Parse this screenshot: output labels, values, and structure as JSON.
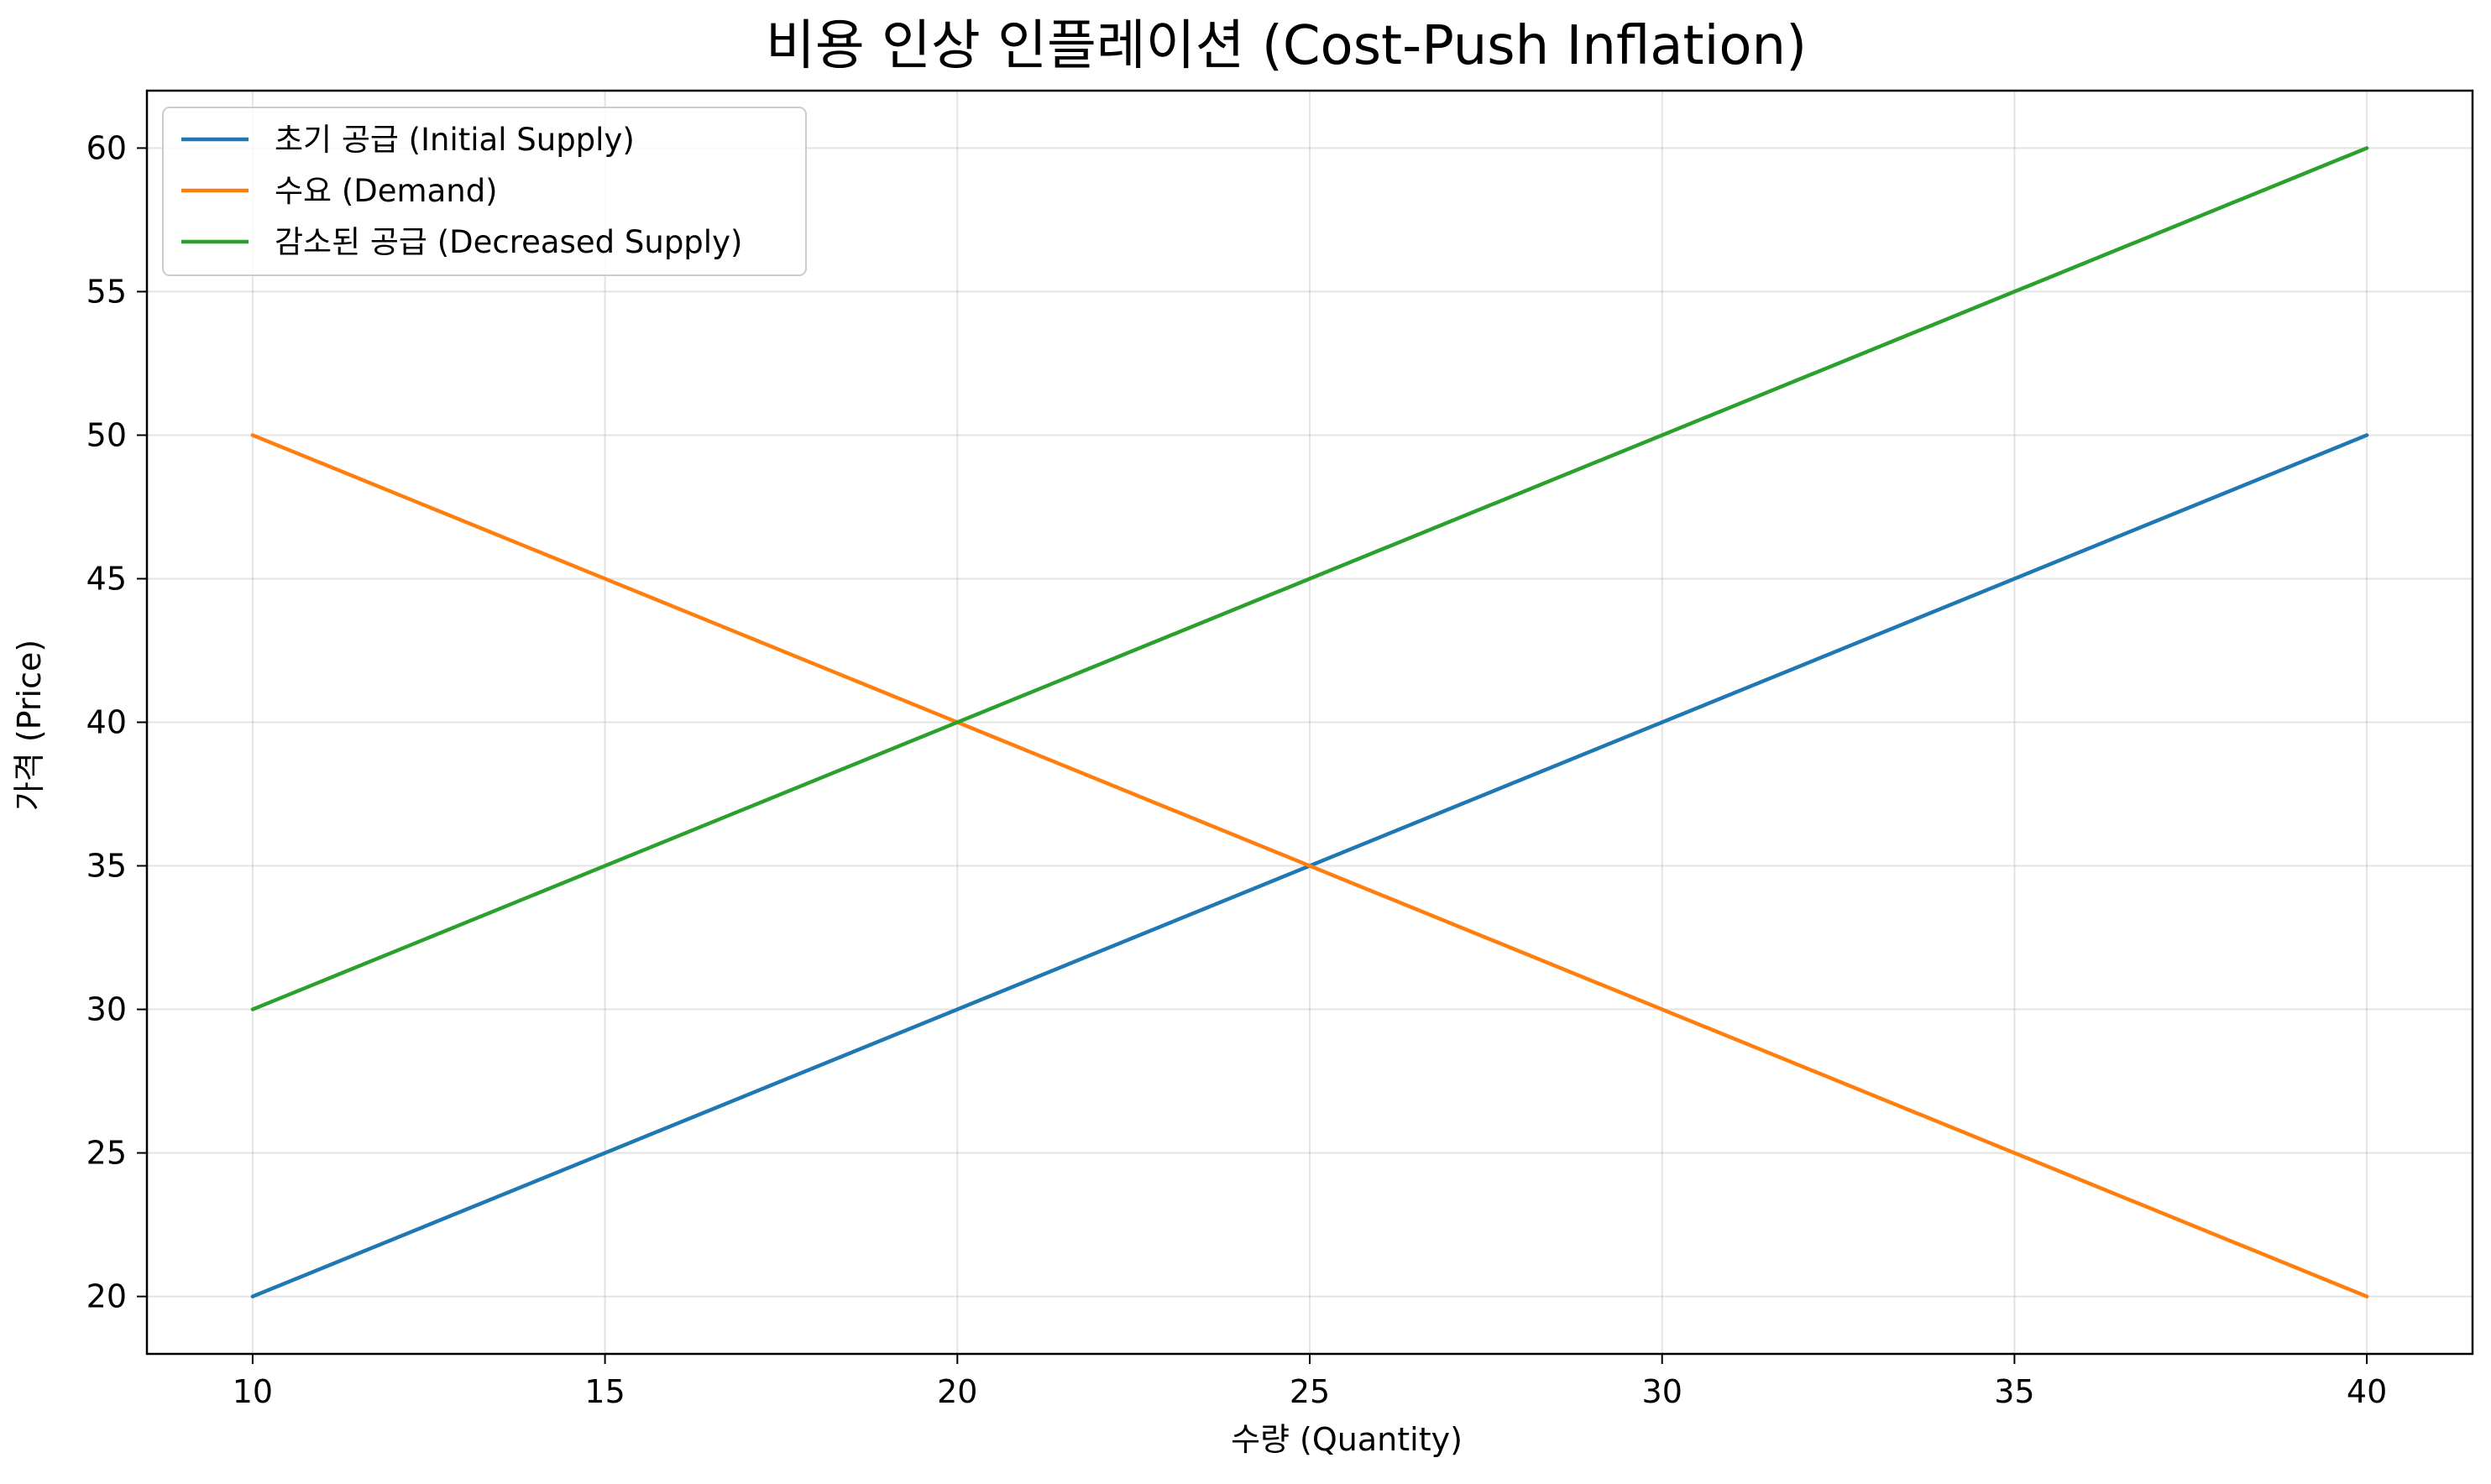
{
  "chart_data": {
    "type": "line",
    "title": "비용 인상 인플레이션 (Cost-Push Inflation)",
    "xlabel": "수량 (Quantity)",
    "ylabel": "가격 (Price)",
    "xlim": [
      8.5,
      41.5
    ],
    "ylim": [
      18,
      62
    ],
    "x_ticks": [
      10,
      15,
      20,
      25,
      30,
      35,
      40
    ],
    "y_ticks": [
      20,
      25,
      30,
      35,
      40,
      45,
      50,
      55,
      60
    ],
    "grid": true,
    "legend_position": "upper-left",
    "series": [
      {
        "name": "초기 공급 (Initial Supply)",
        "color": "#1f77b4",
        "x": [
          10,
          40
        ],
        "y": [
          20,
          50
        ]
      },
      {
        "name": "수요 (Demand)",
        "color": "#ff7f0e",
        "x": [
          10,
          40
        ],
        "y": [
          50,
          20
        ]
      },
      {
        "name": "감소된 공급 (Decreased Supply)",
        "color": "#2ca02c",
        "x": [
          10,
          40
        ],
        "y": [
          30,
          60
        ]
      }
    ]
  }
}
